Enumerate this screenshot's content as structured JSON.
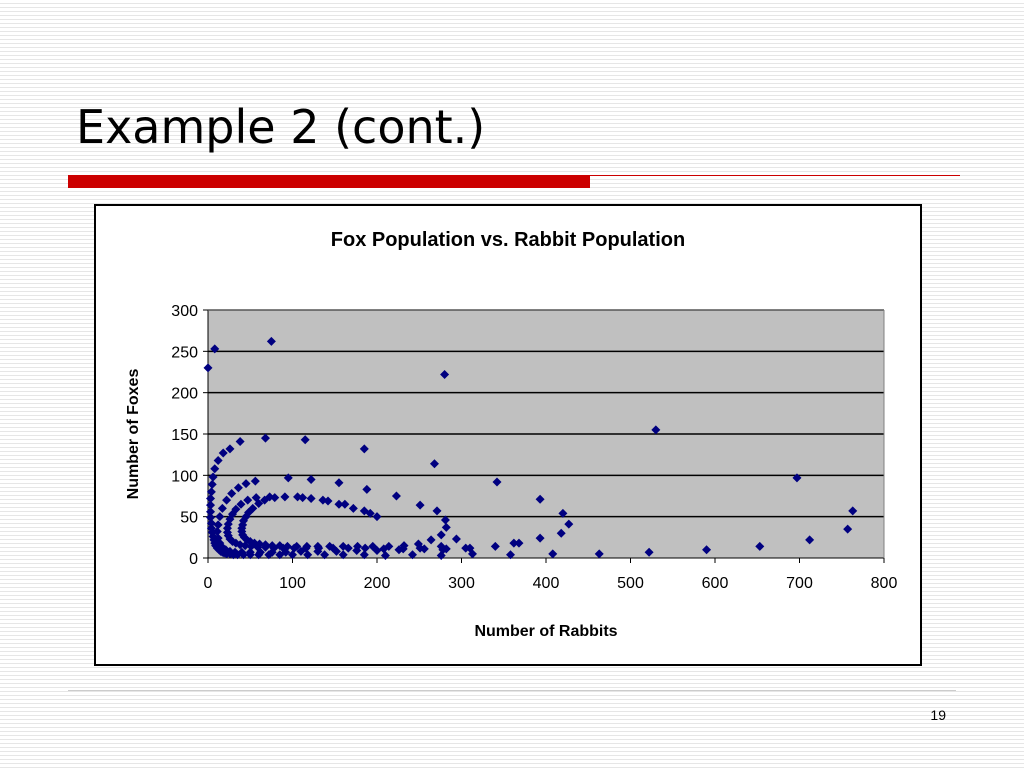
{
  "slide": {
    "title": "Example 2 (cont.)",
    "page_number": "19"
  },
  "colors": {
    "accent_red": "#cc0000",
    "plot_background": "#c0c0c0",
    "marker": "#000080"
  },
  "chart_data": {
    "type": "scatter",
    "title": "Fox Population vs. Rabbit Population",
    "xlabel": "Number of Rabbits",
    "ylabel": "Number of Foxes",
    "xlim": [
      0,
      800
    ],
    "ylim": [
      0,
      300
    ],
    "x_ticks": [
      "0",
      "100",
      "200",
      "300",
      "400",
      "500",
      "600",
      "700",
      "800"
    ],
    "y_ticks": [
      "0",
      "50",
      "100",
      "150",
      "200",
      "250",
      "300"
    ],
    "grid": "horizontal",
    "marker": "diamond",
    "series": [
      {
        "points": [
          [
            0,
            230
          ],
          [
            8,
            253
          ],
          [
            75,
            262
          ],
          [
            280,
            222
          ],
          [
            530,
            155
          ],
          [
            697,
            97
          ],
          [
            763,
            57
          ],
          [
            757,
            35
          ],
          [
            712,
            22
          ],
          [
            653,
            14
          ],
          [
            590,
            10
          ],
          [
            522,
            7
          ],
          [
            463,
            5
          ],
          [
            408,
            5
          ],
          [
            358,
            4
          ],
          [
            313,
            5
          ],
          [
            276,
            3
          ],
          [
            242,
            4
          ],
          [
            210,
            3
          ],
          [
            185,
            4
          ],
          [
            160,
            4
          ],
          [
            138,
            4
          ],
          [
            118,
            4
          ],
          [
            100,
            4
          ],
          [
            85,
            4
          ],
          [
            72,
            4
          ],
          [
            60,
            4
          ],
          [
            50,
            4
          ],
          [
            42,
            4
          ],
          [
            35,
            4
          ],
          [
            30,
            4
          ],
          [
            26,
            5
          ],
          [
            22,
            5
          ],
          [
            19,
            6
          ],
          [
            17,
            7
          ],
          [
            15,
            8
          ],
          [
            13,
            10
          ],
          [
            11,
            12
          ],
          [
            9,
            15
          ],
          [
            8,
            18
          ],
          [
            7,
            22
          ],
          [
            6,
            26
          ],
          [
            5,
            31
          ],
          [
            4,
            36
          ],
          [
            4,
            42
          ],
          [
            3,
            49
          ],
          [
            3,
            56
          ],
          [
            3,
            64
          ],
          [
            3,
            72
          ],
          [
            4,
            80
          ],
          [
            5,
            89
          ],
          [
            6,
            98
          ],
          [
            8,
            108
          ],
          [
            12,
            118
          ],
          [
            18,
            127
          ],
          [
            26,
            132
          ],
          [
            38,
            141
          ],
          [
            68,
            145
          ],
          [
            115,
            143
          ],
          [
            185,
            132
          ],
          [
            268,
            114
          ],
          [
            342,
            92
          ],
          [
            393,
            71
          ],
          [
            420,
            54
          ],
          [
            427,
            41
          ],
          [
            418,
            30
          ],
          [
            393,
            24
          ],
          [
            368,
            18
          ],
          [
            340,
            14
          ],
          [
            310,
            12
          ],
          [
            282,
            11
          ],
          [
            256,
            11
          ],
          [
            231,
            11
          ],
          [
            208,
            11
          ],
          [
            186,
            12
          ],
          [
            166,
            12
          ],
          [
            148,
            12
          ],
          [
            131,
            12
          ],
          [
            116,
            12
          ],
          [
            102,
            12
          ],
          [
            89,
            12
          ],
          [
            78,
            12
          ],
          [
            68,
            13
          ],
          [
            59,
            13
          ],
          [
            51,
            14
          ],
          [
            44,
            15
          ],
          [
            38,
            16
          ],
          [
            33,
            18
          ],
          [
            29,
            20
          ],
          [
            26,
            23
          ],
          [
            24,
            27
          ],
          [
            23,
            31
          ],
          [
            23,
            36
          ],
          [
            24,
            41
          ],
          [
            26,
            47
          ],
          [
            29,
            53
          ],
          [
            33,
            59
          ],
          [
            39,
            65
          ],
          [
            47,
            70
          ],
          [
            57,
            73
          ],
          [
            73,
            74
          ],
          [
            91,
            74
          ],
          [
            112,
            73
          ],
          [
            136,
            70
          ],
          [
            162,
            65
          ],
          [
            192,
            54
          ],
          [
            200,
            50
          ],
          [
            223,
            75
          ],
          [
            251,
            64
          ],
          [
            271,
            57
          ],
          [
            281,
            46
          ],
          [
            282,
            37
          ],
          [
            276,
            28
          ],
          [
            264,
            22
          ],
          [
            249,
            17
          ],
          [
            232,
            15
          ],
          [
            214,
            14
          ],
          [
            195,
            14
          ],
          [
            177,
            14
          ],
          [
            160,
            14
          ],
          [
            144,
            14
          ],
          [
            130,
            14
          ],
          [
            117,
            14
          ],
          [
            105,
            14
          ],
          [
            94,
            14
          ],
          [
            85,
            15
          ],
          [
            76,
            15
          ],
          [
            68,
            16
          ],
          [
            61,
            17
          ],
          [
            55,
            18
          ],
          [
            50,
            20
          ],
          [
            46,
            22
          ],
          [
            43,
            25
          ],
          [
            41,
            28
          ],
          [
            40,
            32
          ],
          [
            40,
            36
          ],
          [
            41,
            40
          ],
          [
            42,
            45
          ],
          [
            45,
            50
          ],
          [
            48,
            55
          ],
          [
            53,
            60
          ],
          [
            60,
            66
          ],
          [
            67,
            70
          ],
          [
            79,
            73
          ],
          [
            95,
            97
          ],
          [
            122,
            95
          ],
          [
            155,
            91
          ],
          [
            188,
            83
          ],
          [
            185,
            57
          ],
          [
            172,
            60
          ],
          [
            155,
            65
          ],
          [
            142,
            69
          ],
          [
            122,
            72
          ],
          [
            106,
            74
          ],
          [
            56,
            93
          ],
          [
            45,
            90
          ],
          [
            36,
            85
          ],
          [
            28,
            78
          ],
          [
            22,
            70
          ],
          [
            17,
            60
          ],
          [
            14,
            50
          ],
          [
            12,
            40
          ],
          [
            11,
            32
          ],
          [
            12,
            24
          ],
          [
            14,
            18
          ],
          [
            17,
            13
          ],
          [
            21,
            10
          ],
          [
            26,
            8
          ],
          [
            32,
            7
          ],
          [
            40,
            7
          ],
          [
            50,
            7
          ],
          [
            62,
            7
          ],
          [
            76,
            7
          ],
          [
            92,
            7
          ],
          [
            110,
            8
          ],
          [
            130,
            8
          ],
          [
            152,
            8
          ],
          [
            176,
            9
          ],
          [
            200,
            9
          ],
          [
            226,
            10
          ],
          [
            251,
            12
          ],
          [
            276,
            14
          ],
          [
            278,
            10
          ],
          [
            294,
            23
          ],
          [
            305,
            12
          ],
          [
            362,
            18
          ]
        ]
      }
    ]
  }
}
